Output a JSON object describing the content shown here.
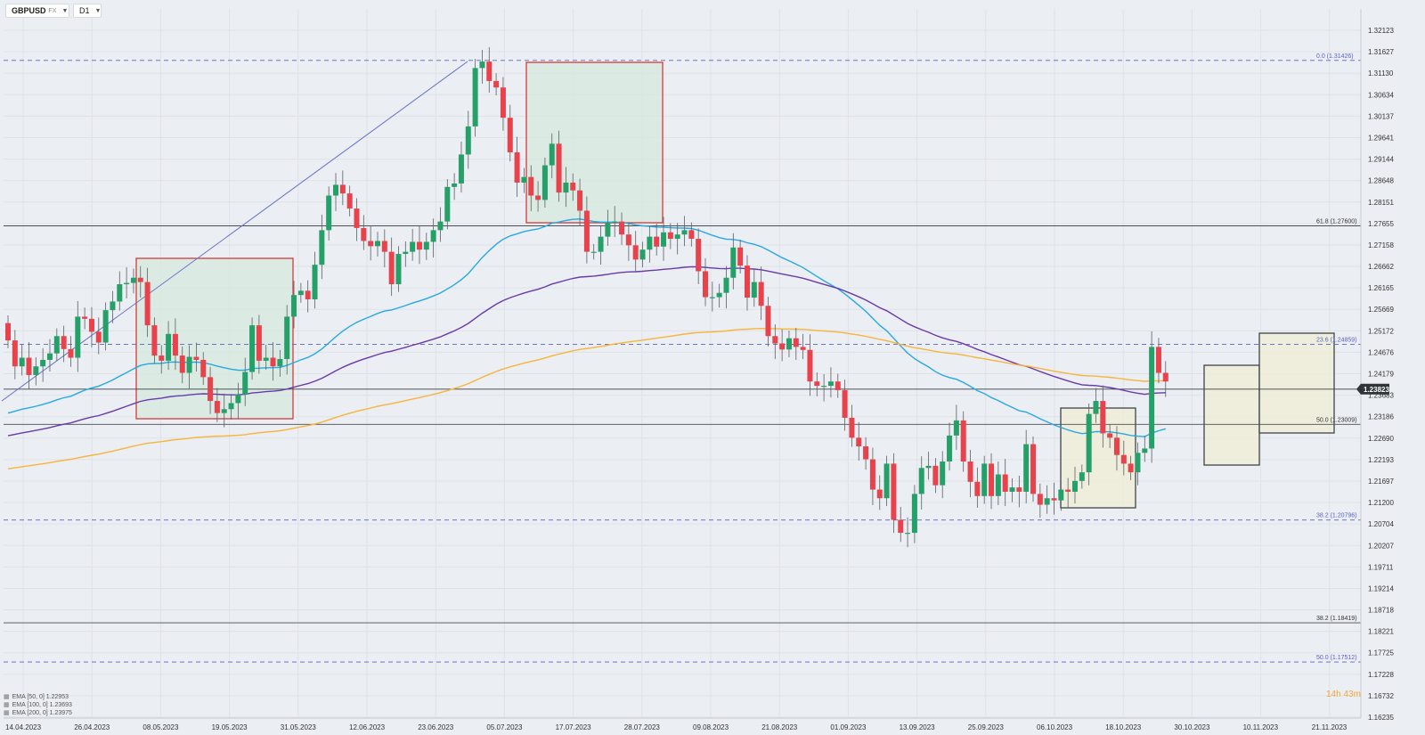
{
  "toolbar": {
    "symbol": "GBPUSD",
    "symbol_suffix": "FX",
    "timeframe": "D1"
  },
  "legend": [
    {
      "label": "EMA [50, 0] 1.22953"
    },
    {
      "label": "EMA [100, 0] 1.23693"
    },
    {
      "label": "EMA [200, 0] 1.23975"
    }
  ],
  "countdown": {
    "hours": "14",
    "h_unit": "h",
    "minutes": "43",
    "m_unit": "m"
  },
  "current_price": "1.23823",
  "colors": {
    "bull": "#26a069",
    "bear": "#e8424d",
    "ema50": "#27a9e1",
    "ema100": "#6a3aa8",
    "ema200": "#f6b53c",
    "box_red": "#d43a3a",
    "box_dark": "#3d4449",
    "green_fill": "#d5eade",
    "yellow_fill": "#f0eed6",
    "fib_blue": "#5863c7"
  },
  "chart_data": {
    "type": "candlestick",
    "y_ticks": [
      "1.32123",
      "1.31627",
      "1.31130",
      "1.30634",
      "1.30137",
      "1.29641",
      "1.29144",
      "1.28648",
      "1.28151",
      "1.27655",
      "1.27158",
      "1.26662",
      "1.26165",
      "1.25669",
      "1.25172",
      "1.24676",
      "1.24179",
      "1.23683",
      "1.23186",
      "1.22690",
      "1.22193",
      "1.21697",
      "1.21200",
      "1.20704",
      "1.20207",
      "1.19711",
      "1.19214",
      "1.18718",
      "1.18221",
      "1.17725",
      "1.17228",
      "1.16732",
      "1.16235"
    ],
    "x_ticks": [
      "14.04.2023",
      "26.04.2023",
      "08.05.2023",
      "19.05.2023",
      "31.05.2023",
      "12.06.2023",
      "23.06.2023",
      "05.07.2023",
      "17.07.2023",
      "28.07.2023",
      "09.08.2023",
      "21.08.2023",
      "01.09.2023",
      "13.09.2023",
      "25.09.2023",
      "06.10.2023",
      "18.10.2023",
      "30.10.2023",
      "10.11.2023",
      "21.11.2023"
    ],
    "ylim": [
      1.1605,
      1.3235
    ],
    "closes": [
      1.2495,
      1.2435,
      1.2455,
      1.2415,
      1.2435,
      1.245,
      1.2465,
      1.2505,
      1.2475,
      1.2455,
      1.255,
      1.2545,
      1.2515,
      1.249,
      1.2565,
      1.2585,
      1.2625,
      1.2628,
      1.264,
      1.263,
      1.253,
      1.246,
      1.2448,
      1.251,
      1.246,
      1.242,
      1.2457,
      1.245,
      1.241,
      1.2355,
      1.2327,
      1.2336,
      1.235,
      1.237,
      1.2422,
      1.253,
      1.2448,
      1.2455,
      1.2435,
      1.2452,
      1.255,
      1.26,
      1.261,
      1.259,
      1.267,
      1.275,
      1.283,
      1.2855,
      1.2835,
      1.28,
      1.2755,
      1.2725,
      1.2713,
      1.2725,
      1.27,
      1.2625,
      1.2695,
      1.27,
      1.2723,
      1.2705,
      1.2723,
      1.275,
      1.277,
      1.285,
      1.2858,
      1.2925,
      1.299,
      1.3125,
      1.314,
      1.3095,
      1.308,
      1.301,
      1.293,
      1.286,
      1.2873,
      1.283,
      1.282,
      1.29,
      1.295,
      1.2837,
      1.286,
      1.2842,
      1.2795,
      1.27,
      1.27,
      1.2735,
      1.2767,
      1.277,
      1.274,
      1.2715,
      1.2682,
      1.2705,
      1.2735,
      1.2712,
      1.2745,
      1.273,
      1.274,
      1.275,
      1.273,
      1.2655,
      1.2595,
      1.2595,
      1.2605,
      1.264,
      1.271,
      1.2668,
      1.2594,
      1.263,
      1.2575,
      1.2505,
      1.2488,
      1.2474,
      1.25,
      1.248,
      1.2473,
      1.24,
      1.239,
      1.239,
      1.24,
      1.238,
      1.2316,
      1.227,
      1.225,
      1.222,
      1.215,
      1.213,
      1.221,
      1.208,
      1.205,
      1.205,
      1.214,
      1.22,
      1.2205,
      1.216,
      1.2215,
      1.2275,
      1.231,
      1.2215,
      1.2168,
      1.2135,
      1.221,
      1.2135,
      1.2185,
      1.2145,
      1.2155,
      1.2145,
      1.2255,
      1.214,
      1.2115,
      1.213,
      1.2125,
      1.215,
      1.2145,
      1.217,
      1.219,
      1.2325,
      1.2355,
      1.228,
      1.227,
      1.223,
      1.221,
      1.219,
      1.2235,
      1.2245,
      1.248,
      1.242,
      1.24
    ]
  },
  "fib_levels": [
    {
      "label": "0.0 (1.31426)",
      "value": 1.31426,
      "style": "dashed"
    },
    {
      "label": "61.8 (1.27600)",
      "value": 1.276,
      "style": "solid"
    },
    {
      "label": "23.6 (1.24859)",
      "value": 1.24859,
      "style": "dashed"
    },
    {
      "label": "50.0 (1.23009)",
      "value": 1.23009,
      "style": "solid"
    },
    {
      "label": "38.2 (1.20796)",
      "value": 1.20796,
      "style": "dashed"
    },
    {
      "label": "38.2 (1.18419)",
      "value": 1.18419,
      "style": "solid"
    },
    {
      "label": "50.0 (1.17512)",
      "value": 1.17512,
      "style": "dashed"
    }
  ]
}
